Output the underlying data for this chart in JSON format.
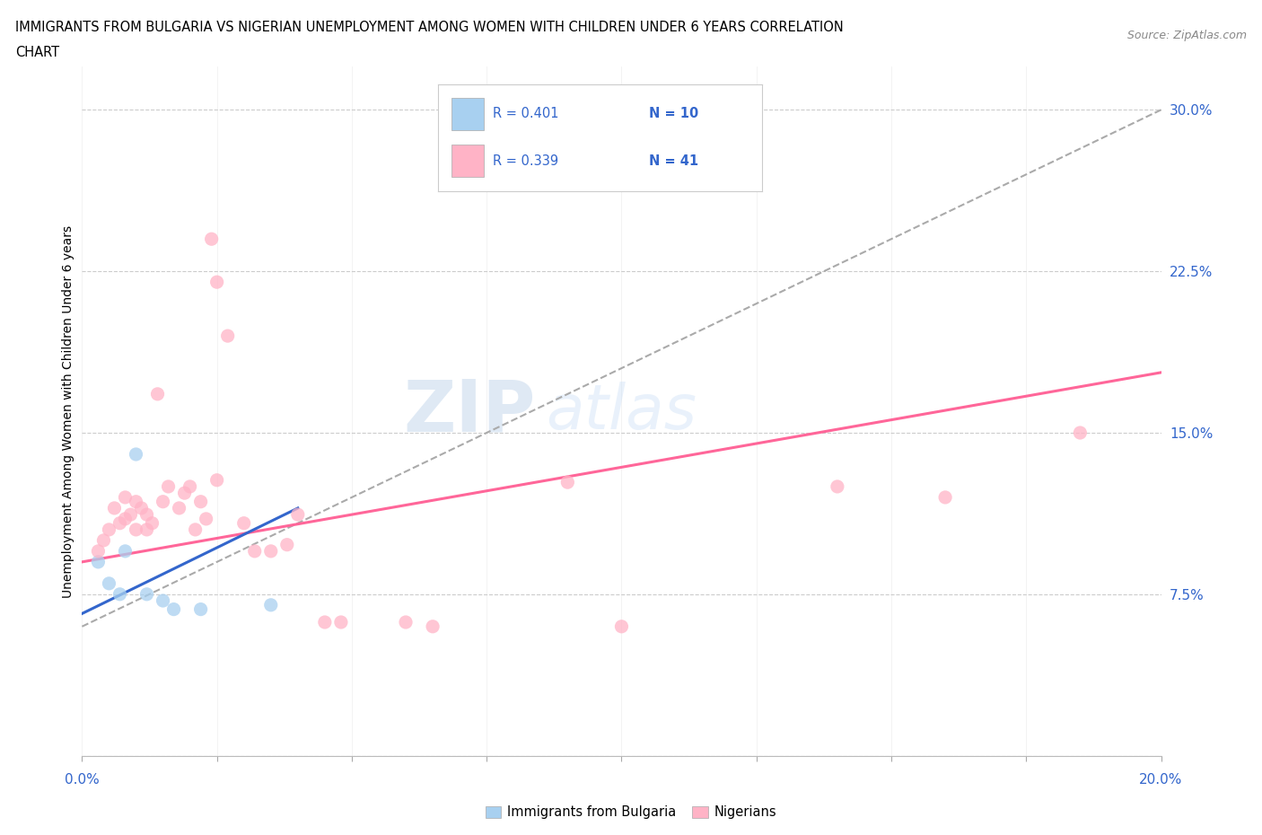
{
  "title_line1": "IMMIGRANTS FROM BULGARIA VS NIGERIAN UNEMPLOYMENT AMONG WOMEN WITH CHILDREN UNDER 6 YEARS CORRELATION",
  "title_line2": "CHART",
  "source": "Source: ZipAtlas.com",
  "ylabel": "Unemployment Among Women with Children Under 6 years",
  "xlim": [
    0.0,
    0.2
  ],
  "ylim": [
    0.0,
    0.32
  ],
  "yticks": [
    0.0,
    0.075,
    0.15,
    0.225,
    0.3
  ],
  "ytick_labels": [
    "",
    "7.5%",
    "15.0%",
    "22.5%",
    "30.0%"
  ],
  "watermark": "ZIPatlas",
  "bulgaria_color": "#a8d0f0",
  "nigeria_color": "#ffb3c6",
  "bulgaria_line_color": "#3366cc",
  "nigeria_line_color": "#ff6699",
  "label_color": "#3366cc",
  "grid_color": "#cccccc",
  "bulgaria_scatter": [
    [
      0.003,
      0.09
    ],
    [
      0.005,
      0.08
    ],
    [
      0.007,
      0.075
    ],
    [
      0.008,
      0.095
    ],
    [
      0.01,
      0.14
    ],
    [
      0.012,
      0.075
    ],
    [
      0.015,
      0.072
    ],
    [
      0.017,
      0.068
    ],
    [
      0.022,
      0.068
    ],
    [
      0.035,
      0.07
    ]
  ],
  "nigeria_scatter": [
    [
      0.003,
      0.095
    ],
    [
      0.004,
      0.1
    ],
    [
      0.005,
      0.105
    ],
    [
      0.006,
      0.115
    ],
    [
      0.007,
      0.108
    ],
    [
      0.008,
      0.11
    ],
    [
      0.008,
      0.12
    ],
    [
      0.009,
      0.112
    ],
    [
      0.01,
      0.105
    ],
    [
      0.01,
      0.118
    ],
    [
      0.011,
      0.115
    ],
    [
      0.012,
      0.105
    ],
    [
      0.012,
      0.112
    ],
    [
      0.013,
      0.108
    ],
    [
      0.014,
      0.168
    ],
    [
      0.015,
      0.118
    ],
    [
      0.016,
      0.125
    ],
    [
      0.018,
      0.115
    ],
    [
      0.019,
      0.122
    ],
    [
      0.02,
      0.125
    ],
    [
      0.021,
      0.105
    ],
    [
      0.022,
      0.118
    ],
    [
      0.023,
      0.11
    ],
    [
      0.024,
      0.24
    ],
    [
      0.025,
      0.128
    ],
    [
      0.025,
      0.22
    ],
    [
      0.027,
      0.195
    ],
    [
      0.03,
      0.108
    ],
    [
      0.032,
      0.095
    ],
    [
      0.035,
      0.095
    ],
    [
      0.038,
      0.098
    ],
    [
      0.04,
      0.112
    ],
    [
      0.045,
      0.062
    ],
    [
      0.048,
      0.062
    ],
    [
      0.06,
      0.062
    ],
    [
      0.065,
      0.06
    ],
    [
      0.09,
      0.127
    ],
    [
      0.1,
      0.06
    ],
    [
      0.14,
      0.125
    ],
    [
      0.16,
      0.12
    ],
    [
      0.185,
      0.15
    ]
  ],
  "bulgaria_trendline": [
    [
      0.0,
      0.066
    ],
    [
      0.04,
      0.115
    ]
  ],
  "nigeria_trendline": [
    [
      0.0,
      0.09
    ],
    [
      0.2,
      0.178
    ]
  ],
  "dashed_trendline": [
    [
      0.0,
      0.06
    ],
    [
      0.2,
      0.3
    ]
  ]
}
